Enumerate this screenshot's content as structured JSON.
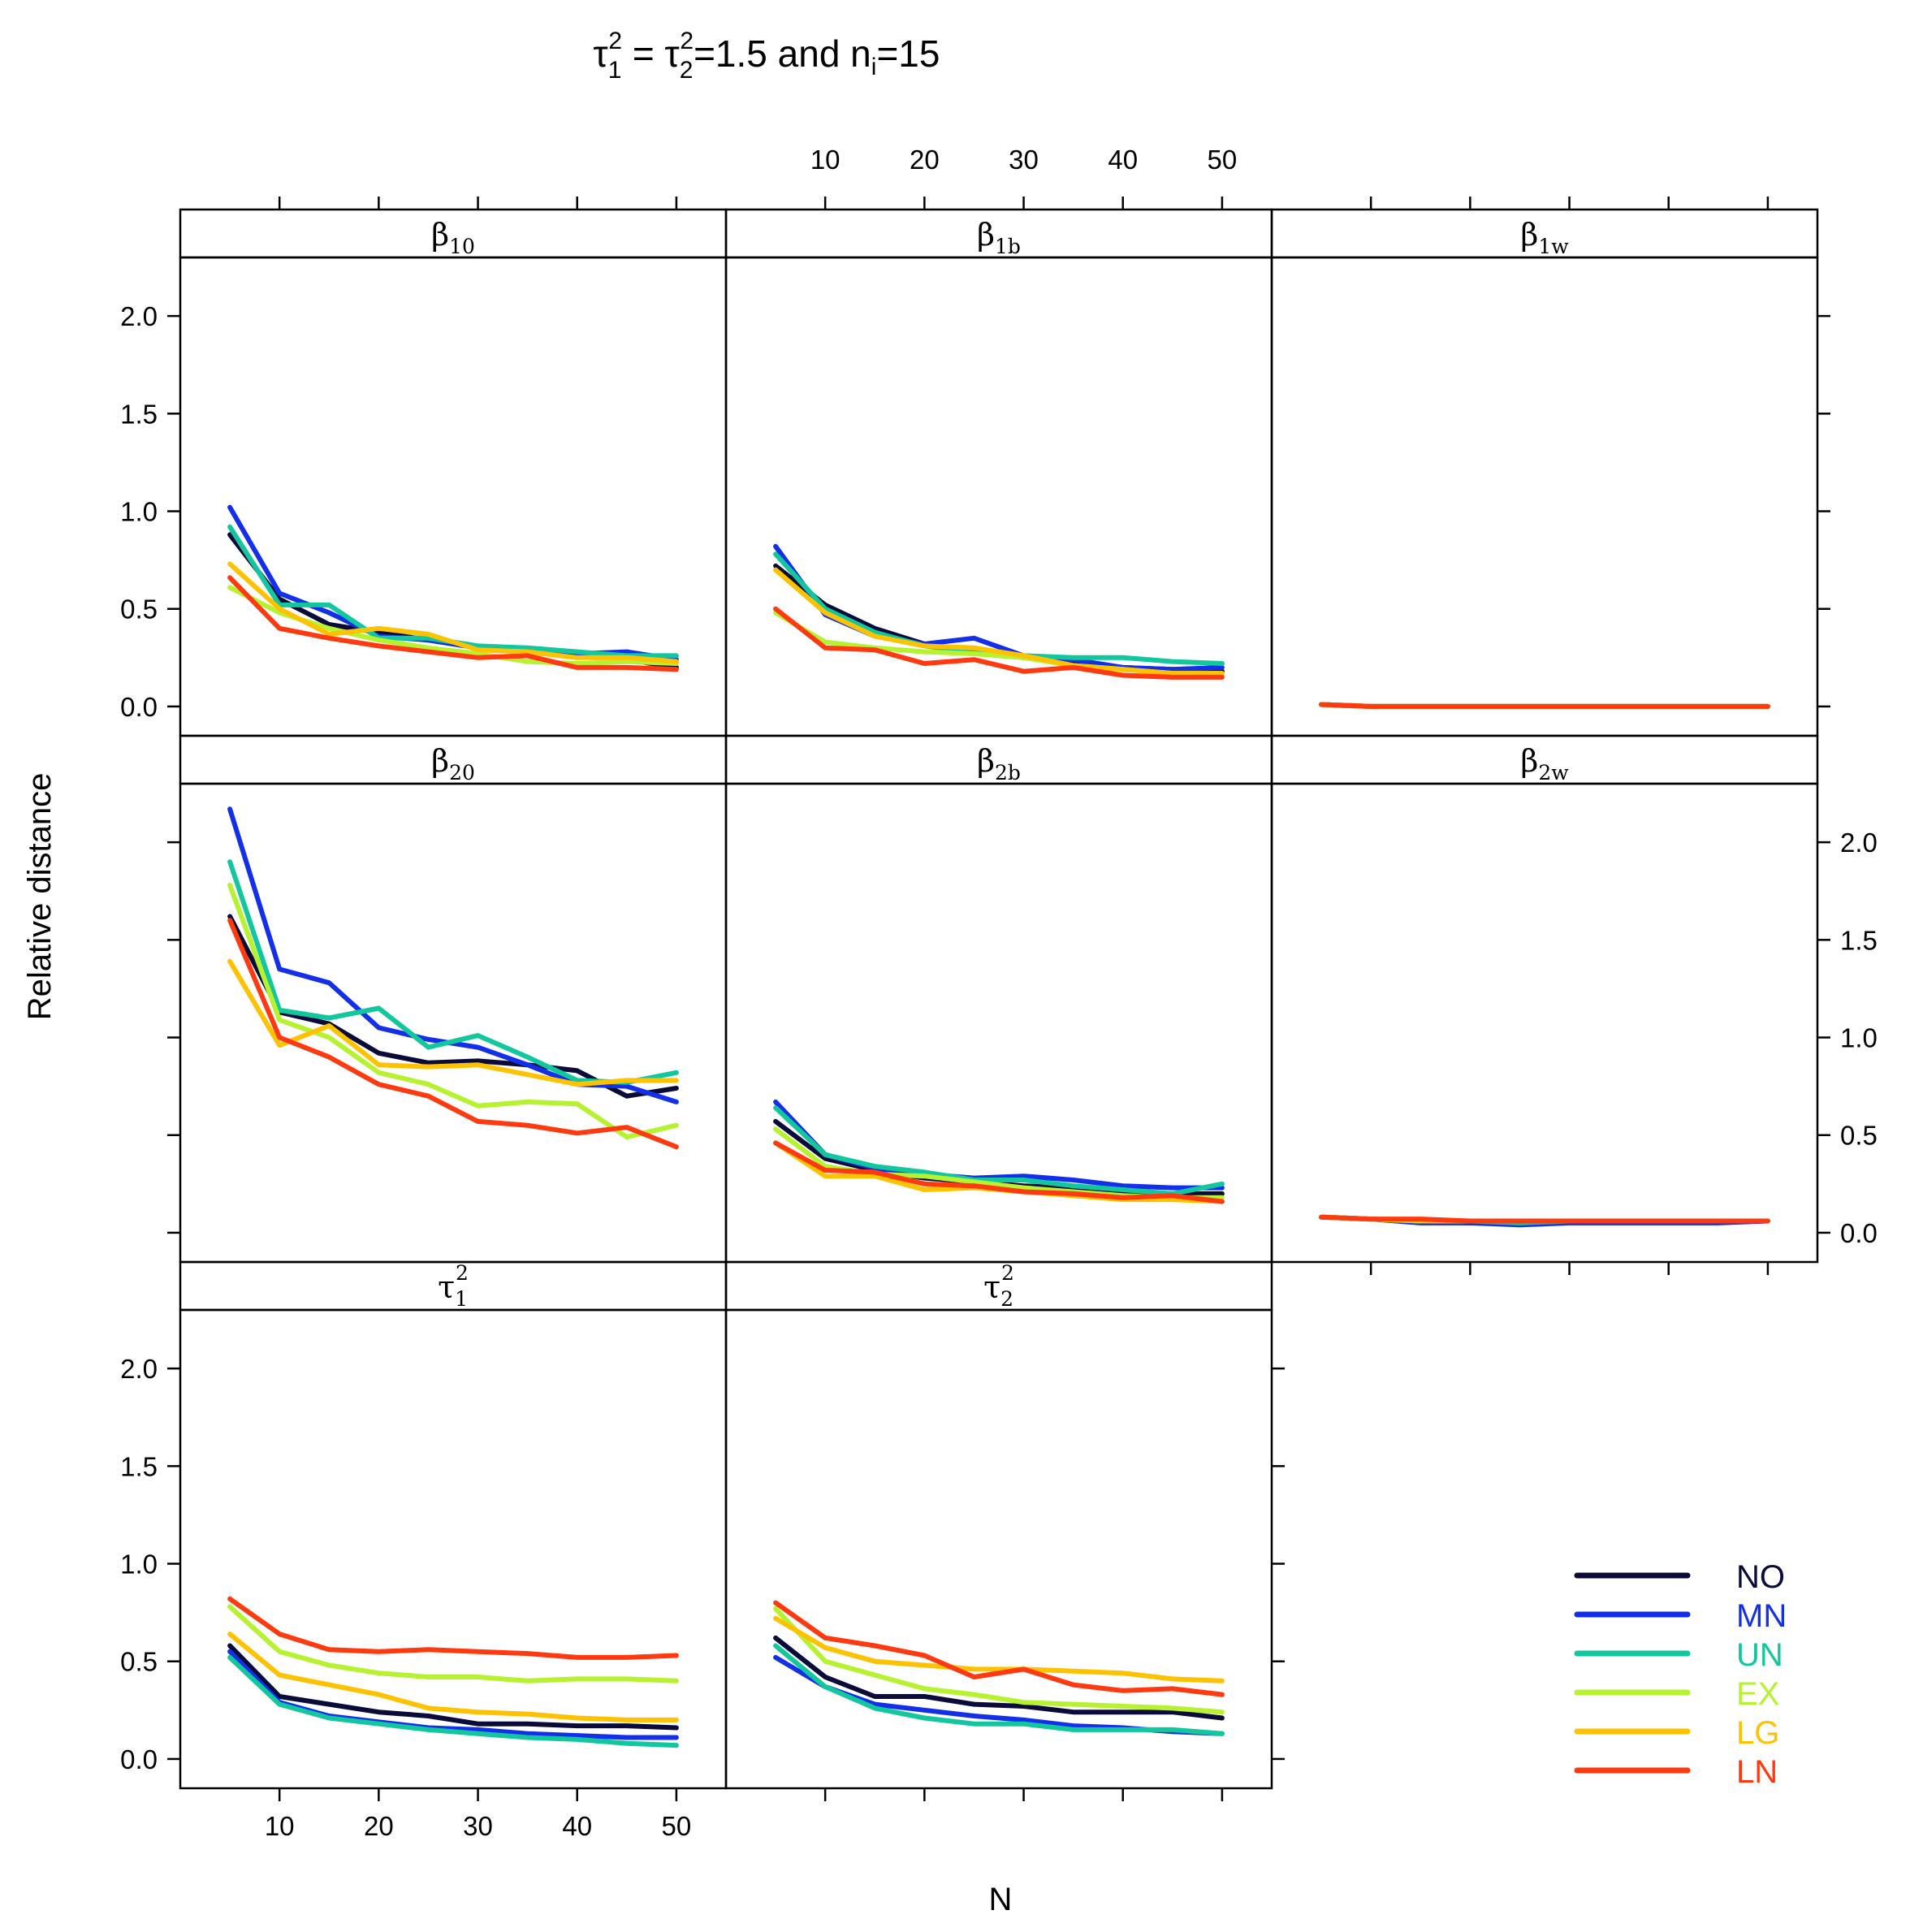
{
  "title": {
    "tau_symbol": "τ",
    "sub1": "1",
    "sub2": "2",
    "sup": "2",
    "equals": " = ",
    "rest": "=1.5 and n",
    "sub_i": "i",
    "ni_value": "=15"
  },
  "axes": {
    "xlabel": "N",
    "ylabel": "Relative distance"
  },
  "x_ticks": [
    10,
    20,
    30,
    40,
    50
  ],
  "y_ticks": [
    "0.0",
    "0.5",
    "1.0",
    "1.5",
    "2.0"
  ],
  "colors": {
    "NO": "#0b0b3a",
    "MN": "#1330e8",
    "UN": "#12c79d",
    "EX": "#b6f230",
    "LG": "#ffc200",
    "LN": "#ff3a10"
  },
  "legend": [
    {
      "key": "NO",
      "label": "NO"
    },
    {
      "key": "MN",
      "label": "MN"
    },
    {
      "key": "UN",
      "label": "UN"
    },
    {
      "key": "EX",
      "label": "EX"
    },
    {
      "key": "LG",
      "label": "LG"
    },
    {
      "key": "LN",
      "label": "LN"
    }
  ],
  "chart_data": {
    "type": "line",
    "title": "τ1² = τ2²=1.5 and ni=15",
    "xlabel": "N",
    "ylabel": "Relative distance",
    "x": [
      5,
      10,
      15,
      20,
      25,
      30,
      35,
      40,
      45,
      50
    ],
    "xlim": [
      0,
      55
    ],
    "ylim": [
      -0.15,
      2.3
    ],
    "panels": [
      {
        "id": "b10",
        "greek": "β",
        "sub": "10",
        "sup": "",
        "series": {
          "NO": [
            0.88,
            0.55,
            0.42,
            0.38,
            0.34,
            0.3,
            0.28,
            0.27,
            0.24,
            0.2
          ],
          "MN": [
            1.02,
            0.58,
            0.48,
            0.36,
            0.34,
            0.3,
            0.28,
            0.27,
            0.28,
            0.24
          ],
          "UN": [
            0.92,
            0.52,
            0.52,
            0.35,
            0.35,
            0.31,
            0.3,
            0.28,
            0.26,
            0.26
          ],
          "EX": [
            0.61,
            0.48,
            0.4,
            0.34,
            0.3,
            0.27,
            0.23,
            0.22,
            0.23,
            0.22
          ],
          "LG": [
            0.73,
            0.5,
            0.37,
            0.4,
            0.37,
            0.29,
            0.28,
            0.25,
            0.25,
            0.23
          ],
          "LN": [
            0.66,
            0.4,
            0.35,
            0.31,
            0.28,
            0.25,
            0.26,
            0.2,
            0.2,
            0.19
          ]
        }
      },
      {
        "id": "b1b",
        "greek": "β",
        "sub": "1b",
        "sup": "",
        "series": {
          "NO": [
            0.72,
            0.52,
            0.4,
            0.32,
            0.28,
            0.25,
            0.22,
            0.2,
            0.19,
            0.18
          ],
          "MN": [
            0.82,
            0.47,
            0.36,
            0.32,
            0.35,
            0.26,
            0.24,
            0.2,
            0.19,
            0.2
          ],
          "UN": [
            0.78,
            0.5,
            0.38,
            0.31,
            0.28,
            0.26,
            0.25,
            0.25,
            0.23,
            0.22
          ],
          "EX": [
            0.48,
            0.33,
            0.3,
            0.28,
            0.27,
            0.25,
            0.21,
            0.19,
            0.17,
            0.17
          ],
          "LG": [
            0.7,
            0.48,
            0.36,
            0.31,
            0.3,
            0.26,
            0.21,
            0.19,
            0.17,
            0.17
          ],
          "LN": [
            0.5,
            0.3,
            0.29,
            0.22,
            0.24,
            0.18,
            0.2,
            0.16,
            0.15,
            0.15
          ]
        }
      },
      {
        "id": "b1w",
        "greek": "β",
        "sub": "1w",
        "sup": "",
        "series": {
          "NO": [
            0.01,
            0.0,
            0.0,
            0.0,
            0.0,
            0.0,
            0.0,
            0.0,
            0.0,
            0.0
          ],
          "MN": [
            0.01,
            0.0,
            0.0,
            0.0,
            0.0,
            0.0,
            0.0,
            0.0,
            0.0,
            0.0
          ],
          "UN": [
            0.01,
            0.0,
            0.0,
            0.0,
            0.0,
            0.0,
            0.0,
            0.0,
            0.0,
            0.0
          ],
          "EX": [
            0.01,
            0.0,
            0.0,
            0.0,
            0.0,
            0.0,
            0.0,
            0.0,
            0.0,
            0.0
          ],
          "LG": [
            0.01,
            0.0,
            0.0,
            0.0,
            0.0,
            0.0,
            0.0,
            0.0,
            0.0,
            0.0
          ],
          "LN": [
            0.01,
            0.0,
            0.0,
            0.0,
            0.0,
            0.0,
            0.0,
            0.0,
            0.0,
            0.0
          ]
        }
      },
      {
        "id": "b20",
        "greek": "β",
        "sub": "20",
        "sup": "",
        "series": {
          "NO": [
            1.62,
            1.13,
            1.07,
            0.92,
            0.87,
            0.88,
            0.86,
            0.83,
            0.7,
            0.74
          ],
          "MN": [
            2.17,
            1.35,
            1.28,
            1.05,
            0.99,
            0.95,
            0.86,
            0.76,
            0.75,
            0.67
          ],
          "UN": [
            1.9,
            1.14,
            1.1,
            1.15,
            0.95,
            1.01,
            0.9,
            0.78,
            0.77,
            0.82
          ],
          "EX": [
            1.78,
            1.09,
            1.0,
            0.82,
            0.76,
            0.65,
            0.67,
            0.66,
            0.49,
            0.55
          ],
          "LG": [
            1.39,
            0.96,
            1.06,
            0.86,
            0.85,
            0.86,
            0.81,
            0.76,
            0.78,
            0.78
          ],
          "LN": [
            1.6,
            1.0,
            0.9,
            0.76,
            0.7,
            0.57,
            0.55,
            0.51,
            0.54,
            0.44
          ]
        }
      },
      {
        "id": "b2b",
        "greek": "β",
        "sub": "2b",
        "sup": "",
        "series": {
          "NO": [
            0.57,
            0.38,
            0.32,
            0.28,
            0.26,
            0.24,
            0.23,
            0.21,
            0.2,
            0.2
          ],
          "MN": [
            0.67,
            0.4,
            0.33,
            0.3,
            0.28,
            0.29,
            0.27,
            0.24,
            0.23,
            0.23
          ],
          "UN": [
            0.64,
            0.4,
            0.34,
            0.31,
            0.27,
            0.27,
            0.24,
            0.22,
            0.2,
            0.25
          ],
          "EX": [
            0.53,
            0.34,
            0.3,
            0.29,
            0.26,
            0.23,
            0.21,
            0.19,
            0.18,
            0.18
          ],
          "LG": [
            0.46,
            0.29,
            0.29,
            0.22,
            0.23,
            0.21,
            0.19,
            0.17,
            0.17,
            0.16
          ],
          "LN": [
            0.46,
            0.32,
            0.31,
            0.25,
            0.24,
            0.21,
            0.2,
            0.18,
            0.19,
            0.16
          ]
        }
      },
      {
        "id": "b2w",
        "greek": "β",
        "sub": "2w",
        "sup": "",
        "series": {
          "NO": [
            0.08,
            0.07,
            0.06,
            0.05,
            0.05,
            0.06,
            0.06,
            0.06,
            0.06,
            0.06
          ],
          "MN": [
            0.08,
            0.07,
            0.05,
            0.05,
            0.04,
            0.05,
            0.05,
            0.05,
            0.05,
            0.06
          ],
          "UN": [
            0.08,
            0.07,
            0.06,
            0.06,
            0.05,
            0.06,
            0.06,
            0.06,
            0.06,
            0.06
          ],
          "EX": [
            0.08,
            0.07,
            0.06,
            0.06,
            0.06,
            0.06,
            0.06,
            0.06,
            0.06,
            0.06
          ],
          "LG": [
            0.08,
            0.07,
            0.06,
            0.06,
            0.06,
            0.06,
            0.06,
            0.06,
            0.06,
            0.06
          ],
          "LN": [
            0.08,
            0.07,
            0.07,
            0.06,
            0.06,
            0.06,
            0.06,
            0.06,
            0.06,
            0.06
          ]
        }
      },
      {
        "id": "t1",
        "greek": "τ",
        "sub": "1",
        "sup": "2",
        "series": {
          "NO": [
            0.58,
            0.32,
            0.28,
            0.24,
            0.22,
            0.18,
            0.18,
            0.17,
            0.17,
            0.16
          ],
          "MN": [
            0.55,
            0.29,
            0.22,
            0.19,
            0.16,
            0.15,
            0.13,
            0.12,
            0.11,
            0.11
          ],
          "UN": [
            0.52,
            0.28,
            0.21,
            0.18,
            0.15,
            0.13,
            0.11,
            0.1,
            0.08,
            0.07
          ],
          "EX": [
            0.78,
            0.55,
            0.48,
            0.44,
            0.42,
            0.42,
            0.4,
            0.41,
            0.41,
            0.4
          ],
          "LG": [
            0.64,
            0.43,
            0.38,
            0.33,
            0.26,
            0.24,
            0.23,
            0.21,
            0.2,
            0.2
          ],
          "LN": [
            0.82,
            0.64,
            0.56,
            0.55,
            0.56,
            0.55,
            0.54,
            0.52,
            0.52,
            0.53
          ]
        }
      },
      {
        "id": "t2",
        "greek": "τ",
        "sub": "2",
        "sup": "2",
        "series": {
          "NO": [
            0.62,
            0.42,
            0.32,
            0.32,
            0.28,
            0.27,
            0.24,
            0.24,
            0.24,
            0.21
          ],
          "MN": [
            0.52,
            0.37,
            0.28,
            0.25,
            0.22,
            0.2,
            0.17,
            0.16,
            0.14,
            0.13
          ],
          "UN": [
            0.58,
            0.37,
            0.26,
            0.21,
            0.18,
            0.18,
            0.15,
            0.15,
            0.15,
            0.13
          ],
          "EX": [
            0.77,
            0.5,
            0.43,
            0.36,
            0.33,
            0.29,
            0.28,
            0.27,
            0.26,
            0.24
          ],
          "LG": [
            0.72,
            0.57,
            0.5,
            0.48,
            0.46,
            0.46,
            0.45,
            0.44,
            0.41,
            0.4
          ],
          "LN": [
            0.8,
            0.62,
            0.58,
            0.53,
            0.42,
            0.46,
            0.38,
            0.35,
            0.36,
            0.33
          ]
        }
      }
    ]
  }
}
